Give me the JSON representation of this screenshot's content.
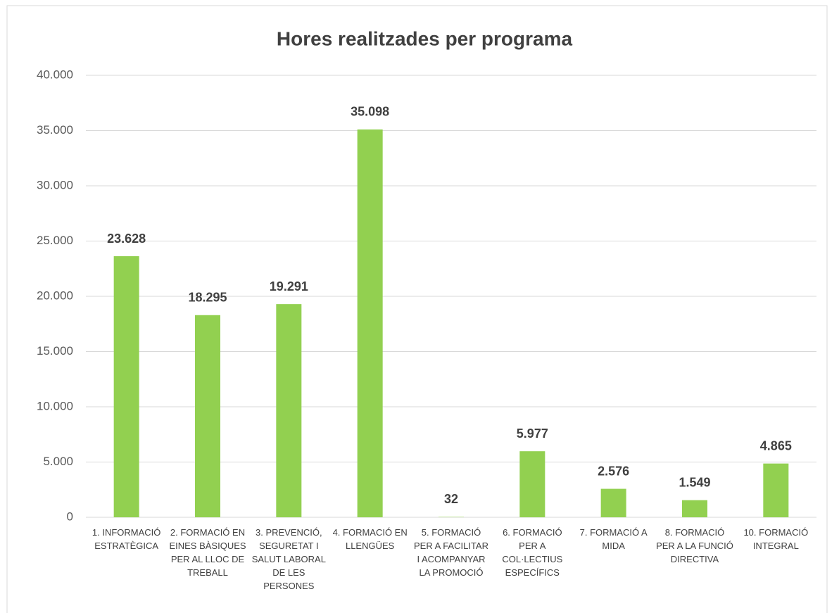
{
  "chart_data": {
    "type": "bar",
    "title": "Hores realitzades per programa",
    "categories": [
      "1. INFORMACIÓ ESTRATÈGICA",
      "2. FORMACIÓ EN EINES BÀSIQUES PER AL LLOC DE TREBALL",
      "3. PREVENCIÓ, SEGURETAT I SALUT LABORAL DE LES PERSONES",
      "4. FORMACIÓ EN LLENGÜES",
      "5. FORMACIÓ PER A FACILITAR I ACOMPANYAR LA PROMOCIÓ",
      "6. FORMACIÓ PER A COL·LECTIUS ESPECÍFICS",
      "7. FORMACIÓ A MIDA",
      "8. FORMACIÓ PER A LA FUNCIÓ DIRECTIVA",
      "10. FORMACIÓ INTEGRAL"
    ],
    "values": [
      23628,
      18295,
      19291,
      35098,
      32,
      5977,
      2576,
      1549,
      4865
    ],
    "value_labels": [
      "23.628",
      "18.295",
      "19.291",
      "35.098",
      "32",
      "5.977",
      "2.576",
      "1.549",
      "4.865"
    ],
    "color": "#92d050",
    "ylim": [
      0,
      40000
    ],
    "yticks": [
      0,
      {
        "value": 5000,
        "label": "5.000"
      },
      {
        "value": 10000,
        "label": "10.000"
      },
      {
        "value": 15000,
        "label": "15.000"
      },
      {
        "value": 20000,
        "label": "20.000"
      },
      {
        "value": 25000,
        "label": "25.000"
      },
      {
        "value": 30000,
        "label": "30.000"
      },
      {
        "value": 35000,
        "label": "35.000"
      },
      {
        "value": 40000,
        "label": "40.000"
      }
    ],
    "grid": true
  }
}
